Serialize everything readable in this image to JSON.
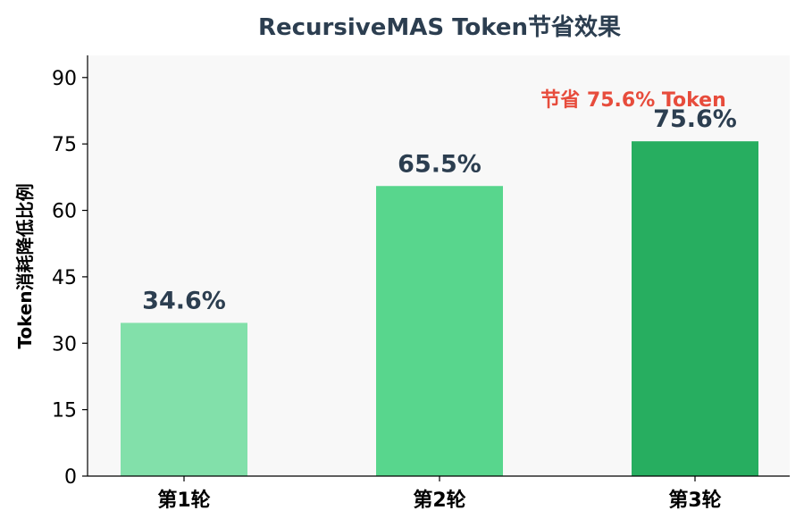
{
  "chart_data": {
    "type": "bar",
    "title": "RecursiveMAS Token节省效果",
    "xlabel": "",
    "ylabel": "Token消耗降低比例",
    "categories": [
      "第1轮",
      "第2轮",
      "第3轮"
    ],
    "values": [
      34.6,
      65.5,
      75.6
    ],
    "data_labels": [
      "34.6%",
      "65.5%",
      "75.6%"
    ],
    "bar_colors": [
      "#82e0aa",
      "#58d68d",
      "#27ae60"
    ],
    "ylim": [
      0,
      95
    ],
    "yticks": [
      0,
      15,
      30,
      45,
      60,
      75,
      90
    ],
    "grid": false,
    "annotation": {
      "text": "节省 75.6% Token",
      "color": "#e74c3c"
    },
    "plot_background": "#f8f8f8",
    "text_color": "#2c3e50"
  }
}
